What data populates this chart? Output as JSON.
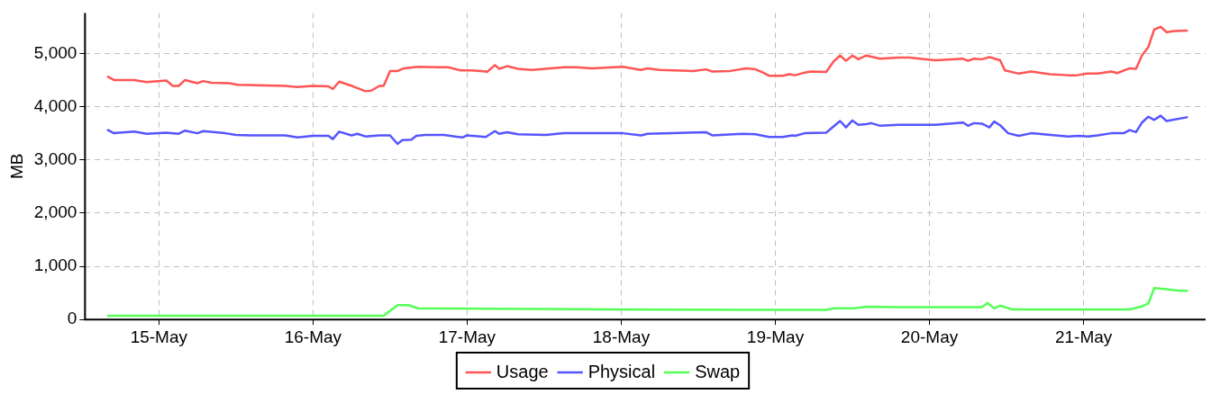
{
  "chart_data": {
    "type": "line",
    "ylabel": "MB",
    "xlim": [
      "--05-14T12:30",
      "--05-21T19:00"
    ],
    "ylim": [
      0,
      5760
    ],
    "xticks": [
      {
        "value": "--05-15",
        "label": "15-May"
      },
      {
        "value": "--05-16",
        "label": "16-May"
      },
      {
        "value": "--05-17",
        "label": "17-May"
      },
      {
        "value": "--05-18",
        "label": "18-May"
      },
      {
        "value": "--05-19",
        "label": "19-May"
      },
      {
        "value": "--05-20",
        "label": "20-May"
      },
      {
        "value": "--05-21",
        "label": "21-May"
      }
    ],
    "yticks": [
      {
        "value": 0,
        "label": "0"
      },
      {
        "value": 1000,
        "label": "1,000"
      },
      {
        "value": 2000,
        "label": "2,000"
      },
      {
        "value": 3000,
        "label": "3,000"
      },
      {
        "value": 4000,
        "label": "4,000"
      },
      {
        "value": 5000,
        "label": "5,000"
      }
    ],
    "grid": true,
    "legend": "bottom",
    "marker": "none",
    "line_style": "solid",
    "series": [
      {
        "name": "Usage",
        "color": "#ff5555",
        "x": [
          "--05-14T16:05",
          "--05-14T17:00",
          "--05-14T20:10",
          "--05-14T22:05",
          "--05-15T01:10",
          "--05-15T02:10",
          "--05-15T03:05",
          "--05-15T04:05",
          "--05-15T06:00",
          "--05-15T06:55",
          "--05-15T08:10",
          "--05-15T11:00",
          "--05-15T12:15",
          "--05-15T19:40",
          "--05-15T21:35",
          "--05-16T00:00",
          "--05-16T02:25",
          "--05-16T03:05",
          "--05-16T04:05",
          "--05-16T06:15",
          "--05-16T08:10",
          "--05-16T09:05",
          "--05-16T10:20",
          "--05-16T11:00",
          "--05-16T12:00",
          "--05-16T13:10",
          "--05-16T14:10",
          "--05-16T16:20",
          "--05-16T19:25",
          "--05-16T21:05",
          "--05-16T23:00",
          "--05-17T00:45",
          "--05-17T02:55",
          "--05-17T03:05",
          "--05-17T04:20",
          "--05-17T05:00",
          "--05-17T06:15",
          "--05-17T07:55",
          "--05-17T10:05",
          "--05-17T15:05",
          "--05-17T17:00",
          "--05-17T19:25",
          "--05-18T00:15",
          "--05-18T03:05",
          "--05-18T04:05",
          "--05-18T06:00",
          "--05-18T11:15",
          "--05-18T13:10",
          "--05-18T14:10",
          "--05-18T17:00",
          "--05-18T19:25",
          "--05-18T20:55",
          "--05-18T22:05",
          "--05-18T23:00",
          "--05-19T01:10",
          "--05-19T02:10",
          "--05-19T03:05",
          "--05-19T04:35",
          "--05-19T05:30",
          "--05-19T07:55",
          "--05-19T09:05",
          "--05-19T10:05",
          "--05-19T11:00",
          "--05-19T12:00",
          "--05-19T12:55",
          "--05-19T14:10",
          "--05-19T16:20",
          "--05-19T19:10",
          "--05-19T20:55",
          "--05-20T00:55",
          "--05-20T05:15",
          "--05-20T06:00",
          "--05-20T06:55",
          "--05-20T08:10",
          "--05-20T09:20",
          "--05-20T11:00",
          "--05-20T11:45",
          "--05-20T13:55",
          "--05-20T15:50",
          "--05-20T18:45",
          "--05-20T21:35",
          "--05-20T23:00",
          "--05-21T00:30",
          "--05-21T02:10",
          "--05-21T04:20",
          "--05-21T05:15",
          "--05-21T07:10",
          "--05-21T08:10",
          "--05-21T09:05",
          "--05-21T10:05",
          "--05-21T11:00",
          "--05-21T12:00",
          "--05-21T12:55",
          "--05-21T14:10",
          "--05-21T16:05"
        ],
        "values": [
          4560,
          4500,
          4500,
          4460,
          4490,
          4390,
          4390,
          4500,
          4440,
          4480,
          4450,
          4440,
          4410,
          4390,
          4370,
          4390,
          4380,
          4330,
          4470,
          4380,
          4290,
          4300,
          4390,
          4390,
          4670,
          4670,
          4720,
          4750,
          4740,
          4740,
          4680,
          4680,
          4660,
          4650,
          4780,
          4710,
          4760,
          4710,
          4690,
          4740,
          4740,
          4720,
          4750,
          4690,
          4720,
          4690,
          4670,
          4700,
          4660,
          4670,
          4720,
          4700,
          4640,
          4580,
          4580,
          4610,
          4590,
          4640,
          4660,
          4650,
          4850,
          4960,
          4860,
          4960,
          4890,
          4960,
          4900,
          4920,
          4920,
          4870,
          4900,
          4860,
          4900,
          4890,
          4930,
          4870,
          4680,
          4620,
          4660,
          4610,
          4590,
          4590,
          4620,
          4620,
          4660,
          4630,
          4720,
          4710,
          4960,
          5120,
          5450,
          5500,
          5400,
          5420,
          5430
        ]
      },
      {
        "name": "Physical",
        "color": "#5555ff",
        "x": [
          "--05-14T16:05",
          "--05-14T17:00",
          "--05-14T20:10",
          "--05-14T22:05",
          "--05-15T01:10",
          "--05-15T03:05",
          "--05-15T04:05",
          "--05-15T06:00",
          "--05-15T06:55",
          "--05-15T10:20",
          "--05-15T12:00",
          "--05-15T14:25",
          "--05-15T19:40",
          "--05-15T21:35",
          "--05-16T00:00",
          "--05-16T02:25",
          "--05-16T03:05",
          "--05-16T04:05",
          "--05-16T06:00",
          "--05-16T06:55",
          "--05-16T08:10",
          "--05-16T10:20",
          "--05-16T12:00",
          "--05-16T13:10",
          "--05-16T13:55",
          "--05-16T15:20",
          "--05-16T16:05",
          "--05-16T17:30",
          "--05-16T20:25",
          "--05-16T23:15",
          "--05-17T00:00",
          "--05-17T02:55",
          "--05-17T04:20",
          "--05-17T05:00",
          "--05-17T06:15",
          "--05-17T07:55",
          "--05-17T12:15",
          "--05-17T15:05",
          "--05-18T00:15",
          "--05-18T03:05",
          "--05-18T04:05",
          "--05-18T13:10",
          "--05-18T14:10",
          "--05-18T18:55",
          "--05-18T20:55",
          "--05-18T23:00",
          "--05-19T01:10",
          "--05-19T02:40",
          "--05-19T03:05",
          "--05-19T04:35",
          "--05-19T07:55",
          "--05-19T10:05",
          "--05-19T11:00",
          "--05-19T12:00",
          "--05-19T12:55",
          "--05-19T14:10",
          "--05-19T14:55",
          "--05-19T16:20",
          "--05-19T19:10",
          "--05-20T00:55",
          "--05-20T05:15",
          "--05-20T06:00",
          "--05-20T06:55",
          "--05-20T08:10",
          "--05-20T09:20",
          "--05-20T10:05",
          "--05-20T11:00",
          "--05-20T12:15",
          "--05-20T13:55",
          "--05-20T15:50",
          "--05-20T21:35",
          "--05-20T23:15",
          "--05-21T00:45",
          "--05-21T02:10",
          "--05-21T04:20",
          "--05-21T06:15",
          "--05-21T07:10",
          "--05-21T08:10",
          "--05-21T09:05",
          "--05-21T10:05",
          "--05-21T11:00",
          "--05-21T12:00",
          "--05-21T12:55",
          "--05-21T16:05"
        ],
        "values": [
          3560,
          3500,
          3530,
          3490,
          3510,
          3490,
          3550,
          3500,
          3540,
          3500,
          3470,
          3460,
          3460,
          3420,
          3450,
          3450,
          3390,
          3530,
          3460,
          3490,
          3440,
          3460,
          3460,
          3300,
          3370,
          3380,
          3450,
          3470,
          3470,
          3420,
          3460,
          3430,
          3540,
          3490,
          3520,
          3480,
          3470,
          3500,
          3500,
          3460,
          3490,
          3520,
          3460,
          3490,
          3480,
          3430,
          3430,
          3460,
          3450,
          3500,
          3510,
          3730,
          3610,
          3740,
          3660,
          3670,
          3690,
          3640,
          3660,
          3660,
          3700,
          3640,
          3690,
          3680,
          3610,
          3720,
          3650,
          3500,
          3450,
          3500,
          3440,
          3450,
          3440,
          3460,
          3500,
          3500,
          3560,
          3520,
          3700,
          3810,
          3750,
          3830,
          3730,
          3800
        ]
      },
      {
        "name": "Swap",
        "color": "#55ff55",
        "x": [
          "--05-14T16:05",
          "--05-16T11:00",
          "--05-16T13:10",
          "--05-16T14:55",
          "--05-16T16:20",
          "--05-17T05:00",
          "--05-18T00:00",
          "--05-19T01:10",
          "--05-19T07:55",
          "--05-19T09:05",
          "--05-19T12:15",
          "--05-19T14:10",
          "--05-19T19:10",
          "--05-20T08:10",
          "--05-20T09:05",
          "--05-20T10:05",
          "--05-20T11:00",
          "--05-20T12:55",
          "--05-20T22:35",
          "--05-21T07:10",
          "--05-21T08:55",
          "--05-21T10:05",
          "--05-21T11:00",
          "--05-21T12:55",
          "--05-21T14:55",
          "--05-21T16:05"
        ],
        "values": [
          70,
          70,
          270,
          270,
          210,
          200,
          190,
          180,
          180,
          210,
          210,
          240,
          230,
          230,
          310,
          210,
          260,
          190,
          190,
          190,
          240,
          300,
          590,
          570,
          540,
          540
        ]
      }
    ]
  }
}
